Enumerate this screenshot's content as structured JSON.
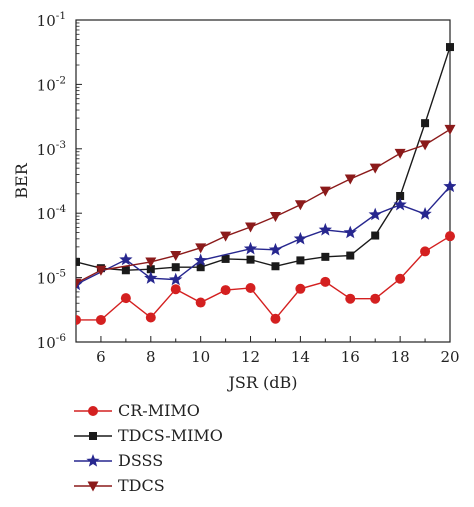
{
  "chart_data": {
    "type": "line",
    "xlabel": "JSR (dB)",
    "ylabel": "BER",
    "yscale": "log",
    "xlim": [
      5,
      20
    ],
    "ylim": [
      1e-06,
      0.1
    ],
    "grid": false,
    "legend_position": "bottom-left, below the plot",
    "xticks": [
      6,
      8,
      10,
      12,
      14,
      16,
      18,
      20
    ],
    "yticks": [
      {
        "value": 1e-06,
        "base": "10",
        "exp": "-6"
      },
      {
        "value": 1e-05,
        "base": "10",
        "exp": "-5"
      },
      {
        "value": 0.0001,
        "base": "10",
        "exp": "-4"
      },
      {
        "value": 0.001,
        "base": "10",
        "exp": "-3"
      },
      {
        "value": 0.01,
        "base": "10",
        "exp": "-2"
      },
      {
        "value": 0.1,
        "base": "10",
        "exp": "-1"
      }
    ],
    "series": [
      {
        "name": "CR-MIMO",
        "color": "#d42020",
        "marker": "circle",
        "x": [
          5,
          6,
          7,
          8,
          9,
          10,
          11,
          12,
          13,
          14,
          15,
          16,
          17,
          18,
          19,
          20
        ],
        "y": [
          2.2e-06,
          2.2e-06,
          4.8e-06,
          2.4e-06,
          6.6e-06,
          4.1e-06,
          6.4e-06,
          6.9e-06,
          2.3e-06,
          6.7e-06,
          8.6e-06,
          4.7e-06,
          4.7e-06,
          9.6e-06,
          2.55e-05,
          4.4e-05
        ]
      },
      {
        "name": "TDCS-MIMO",
        "color": "#1a1a1a",
        "marker": "square",
        "x": [
          5,
          6,
          7,
          8,
          9,
          10,
          11,
          12,
          13,
          14,
          15,
          16,
          17,
          18,
          19,
          20
        ],
        "y": [
          1.75e-05,
          1.4e-05,
          1.3e-05,
          1.35e-05,
          1.45e-05,
          1.45e-05,
          1.95e-05,
          1.9e-05,
          1.5e-05,
          1.85e-05,
          2.1e-05,
          2.2e-05,
          4.5e-05,
          0.000185,
          0.0025,
          0.038
        ]
      },
      {
        "name": "DSSS",
        "color": "#27278f",
        "marker": "star",
        "x": [
          5,
          7,
          8,
          9,
          10,
          12,
          13,
          14,
          15,
          16,
          17,
          18,
          19,
          20
        ],
        "y": [
          7.8e-06,
          1.9e-05,
          9.8e-06,
          9.3e-06,
          1.85e-05,
          2.8e-05,
          2.7e-05,
          4e-05,
          5.5e-05,
          5e-05,
          9.5e-05,
          0.000135,
          9.7e-05,
          0.00026
        ]
      },
      {
        "name": "TDCS",
        "color": "#8b1a1a",
        "marker": "triangle-down",
        "x": [
          5,
          6,
          8,
          9,
          10,
          11,
          12,
          13,
          14,
          15,
          16,
          17,
          18,
          19,
          20
        ],
        "y": [
          8.2e-06,
          1.3e-05,
          1.75e-05,
          2.2e-05,
          2.9e-05,
          4.4e-05,
          6.1e-05,
          8.9e-05,
          0.000135,
          0.00022,
          0.00034,
          0.0005,
          0.00085,
          0.00115,
          0.002
        ]
      }
    ]
  }
}
